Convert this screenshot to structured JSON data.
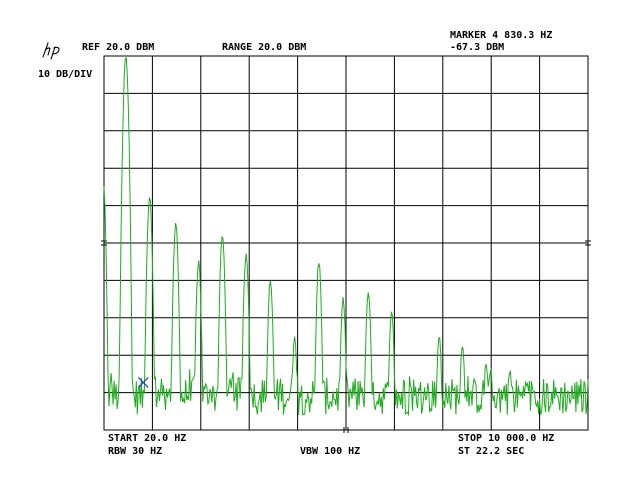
{
  "header": {
    "ref_level": "REF 20.0 DBM",
    "range": "RANGE 20.0 DBM",
    "marker_label": "MARKER 4 830.3 HZ",
    "marker_value": "-67.3 DBM",
    "scale": "10 DB/DIV"
  },
  "footer": {
    "start": "START 20.0 HZ",
    "stop": "STOP 10 000.0 HZ",
    "rbw": "RBW 30 HZ",
    "vbw": "VBW 100 HZ",
    "sweep": "ST 22.2 SEC"
  },
  "colors": {
    "trace": "#22aa22",
    "marker": "#1a3fb0",
    "grid": "#000000"
  },
  "icons": {
    "logo": "hp-logo"
  },
  "chart_data": {
    "type": "line",
    "xlim": [
      20.0,
      10000.0
    ],
    "ylim": [
      -80.0,
      20.0
    ],
    "marker": {
      "x": 830.3,
      "y": -67.3
    },
    "peaks": [
      {
        "x": 0,
        "y": -13
      },
      {
        "x": 470,
        "y": 20
      },
      {
        "x": 960,
        "y": -18
      },
      {
        "x": 1500,
        "y": -25
      },
      {
        "x": 1970,
        "y": -35
      },
      {
        "x": 2460,
        "y": -28
      },
      {
        "x": 2950,
        "y": -33
      },
      {
        "x": 3450,
        "y": -40
      },
      {
        "x": 3950,
        "y": -55
      },
      {
        "x": 4450,
        "y": -35
      },
      {
        "x": 4950,
        "y": -45
      },
      {
        "x": 5470,
        "y": -43
      },
      {
        "x": 5950,
        "y": -48
      },
      {
        "x": 6930,
        "y": -55
      },
      {
        "x": 7410,
        "y": -57
      },
      {
        "x": 7900,
        "y": -62
      },
      {
        "x": 8390,
        "y": -64
      },
      {
        "x": 8880,
        "y": -70
      },
      {
        "x": 9370,
        "y": -72
      }
    ],
    "noise_floor_db": -71,
    "grid": true
  }
}
